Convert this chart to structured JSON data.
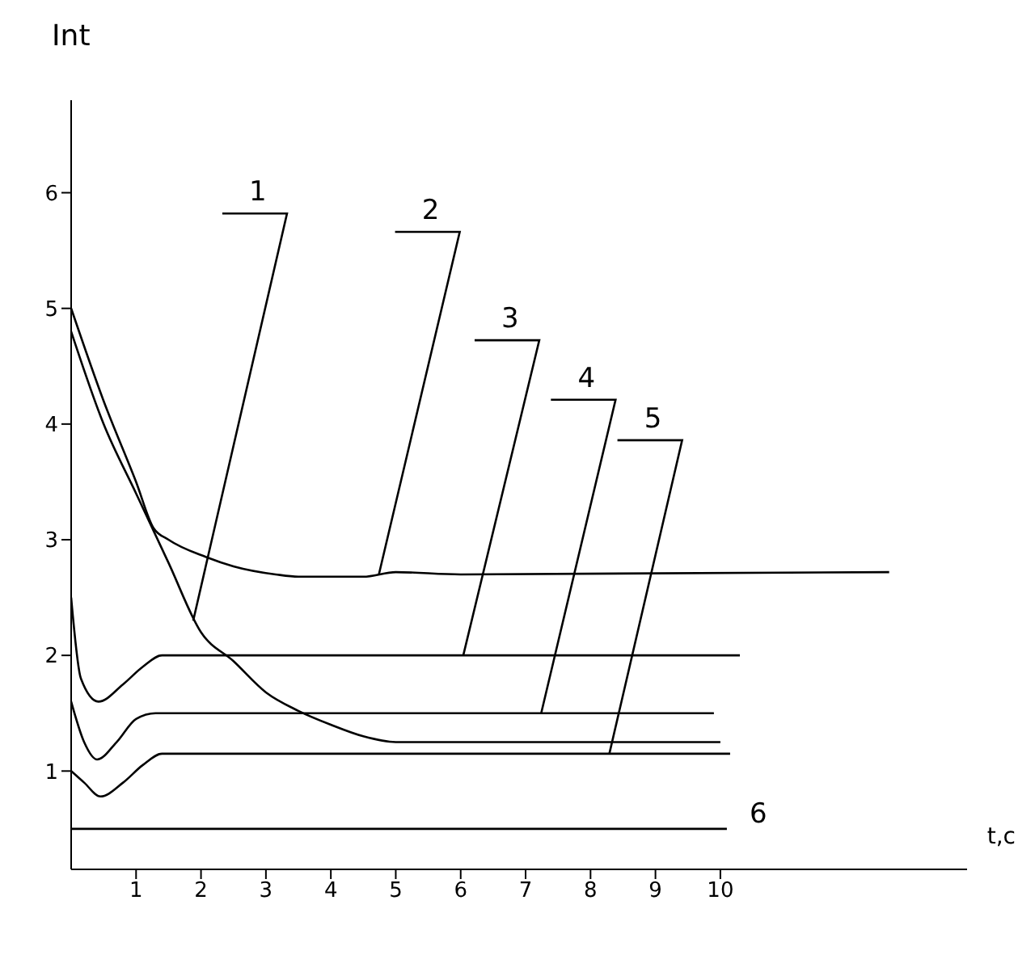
{
  "chart_data": {
    "type": "line",
    "xlabel": "t,c",
    "ylabel": "Int",
    "xlim": [
      0,
      13.8
    ],
    "ylim": [
      0.15,
      6.8
    ],
    "xticks": [
      1,
      2,
      3,
      4,
      5,
      6,
      7,
      8,
      9,
      10
    ],
    "yticks": [
      1,
      2,
      3,
      4,
      5,
      6
    ],
    "grid": false,
    "legend": false,
    "marker": "none",
    "line_style": "solid",
    "series": [
      {
        "color": "#000000",
        "x": [
          0,
          0.5,
          1,
          1.5,
          2,
          2.5,
          3,
          3.5,
          4,
          4.5,
          5,
          10.0
        ],
        "values": [
          4.8,
          4.0,
          3.4,
          2.8,
          2.2,
          1.95,
          1.68,
          1.52,
          1.4,
          1.3,
          1.25,
          1.25
        ]
      },
      {
        "color": "#000000",
        "x": [
          0,
          0.5,
          1,
          1.27,
          1.5,
          2.08,
          2.5,
          3.15,
          3.5,
          4.5,
          5,
          6,
          12.6
        ],
        "values": [
          5.0,
          4.2,
          3.5,
          3.1,
          3.0,
          2.85,
          2.77,
          2.7,
          2.68,
          2.68,
          2.72,
          2.7,
          2.72
        ]
      },
      {
        "color": "#000000",
        "x": [
          0,
          0.15,
          0.42,
          0.8,
          1.1,
          1.4,
          2,
          10.3
        ],
        "values": [
          2.5,
          1.8,
          1.6,
          1.75,
          1.9,
          2.0,
          2.0,
          2.0
        ]
      },
      {
        "color": "#000000",
        "x": [
          0,
          0.2,
          0.4,
          0.7,
          1.0,
          1.3,
          2,
          9.9
        ],
        "values": [
          1.6,
          1.25,
          1.1,
          1.25,
          1.45,
          1.5,
          1.5,
          1.5
        ]
      },
      {
        "color": "#000000",
        "x": [
          0,
          0.2,
          0.45,
          0.8,
          1.1,
          1.4,
          2,
          10.15
        ],
        "values": [
          1.0,
          0.9,
          0.78,
          0.9,
          1.05,
          1.15,
          1.15,
          1.15
        ]
      },
      {
        "color": "#000000",
        "x": [
          0,
          10.1
        ],
        "values": [
          0.5,
          0.5
        ]
      }
    ],
    "annotations": [
      {
        "text": "1",
        "x": 1.88,
        "y": 2.3
      },
      {
        "text": "2",
        "x": 4.74,
        "y": 2.7
      },
      {
        "text": "3",
        "x": 6.04,
        "y": 2.0
      },
      {
        "text": "4",
        "x": 7.24,
        "y": 1.5
      },
      {
        "text": "5",
        "x": 8.29,
        "y": 1.15
      },
      {
        "text": "6",
        "x": 10.1,
        "y": 0.5
      }
    ]
  }
}
